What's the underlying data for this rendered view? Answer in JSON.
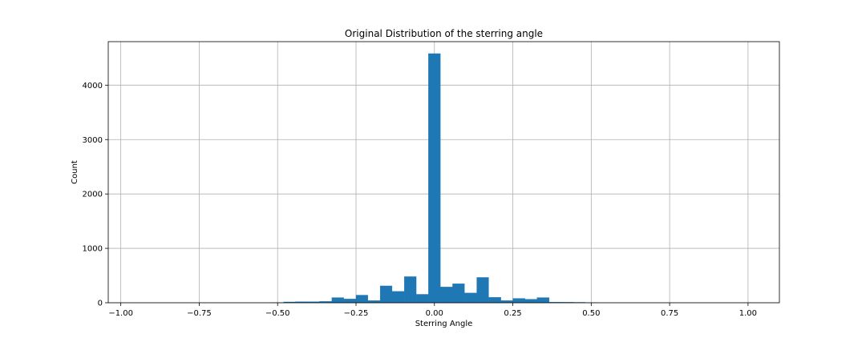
{
  "chart_data": {
    "type": "bar",
    "title": "Original Distribution of the sterring angle",
    "xlabel": "Sterring Angle",
    "ylabel": "Count",
    "xlim": [
      -1.04,
      1.1
    ],
    "ylim": [
      0,
      4800
    ],
    "grid": true,
    "bar_color": "#1f77b4",
    "x_ticks": [
      -1.0,
      -0.75,
      -0.5,
      -0.25,
      0.0,
      0.25,
      0.5,
      0.75,
      1.0
    ],
    "x_tick_labels": [
      "−1.00",
      "−0.75",
      "−0.50",
      "−0.25",
      "0.00",
      "0.25",
      "0.50",
      "0.75",
      "1.00"
    ],
    "y_ticks": [
      0,
      1000,
      2000,
      3000,
      4000
    ],
    "y_tick_labels": [
      "0",
      "1000",
      "2000",
      "3000",
      "4000"
    ],
    "bins": [
      {
        "x0": -0.52,
        "x1": -0.481,
        "count": 5
      },
      {
        "x0": -0.481,
        "x1": -0.443,
        "count": 15
      },
      {
        "x0": -0.443,
        "x1": -0.404,
        "count": 20
      },
      {
        "x0": -0.404,
        "x1": -0.366,
        "count": 20
      },
      {
        "x0": -0.366,
        "x1": -0.327,
        "count": 25
      },
      {
        "x0": -0.327,
        "x1": -0.289,
        "count": 95
      },
      {
        "x0": -0.289,
        "x1": -0.25,
        "count": 70
      },
      {
        "x0": -0.25,
        "x1": -0.212,
        "count": 140
      },
      {
        "x0": -0.212,
        "x1": -0.173,
        "count": 40
      },
      {
        "x0": -0.173,
        "x1": -0.135,
        "count": 310
      },
      {
        "x0": -0.135,
        "x1": -0.096,
        "count": 210
      },
      {
        "x0": -0.096,
        "x1": -0.058,
        "count": 480
      },
      {
        "x0": -0.058,
        "x1": -0.019,
        "count": 155
      },
      {
        "x0": -0.019,
        "x1": 0.019,
        "count": 4580
      },
      {
        "x0": 0.019,
        "x1": 0.058,
        "count": 290
      },
      {
        "x0": 0.058,
        "x1": 0.096,
        "count": 350
      },
      {
        "x0": 0.096,
        "x1": 0.135,
        "count": 180
      },
      {
        "x0": 0.135,
        "x1": 0.173,
        "count": 465
      },
      {
        "x0": 0.173,
        "x1": 0.212,
        "count": 100
      },
      {
        "x0": 0.212,
        "x1": 0.25,
        "count": 40
      },
      {
        "x0": 0.25,
        "x1": 0.289,
        "count": 80
      },
      {
        "x0": 0.289,
        "x1": 0.327,
        "count": 65
      },
      {
        "x0": 0.327,
        "x1": 0.366,
        "count": 95
      },
      {
        "x0": 0.366,
        "x1": 0.404,
        "count": 12
      },
      {
        "x0": 0.404,
        "x1": 0.443,
        "count": 10
      },
      {
        "x0": 0.443,
        "x1": 0.481,
        "count": 8
      },
      {
        "x0": 0.481,
        "x1": 0.52,
        "count": 5
      }
    ]
  }
}
